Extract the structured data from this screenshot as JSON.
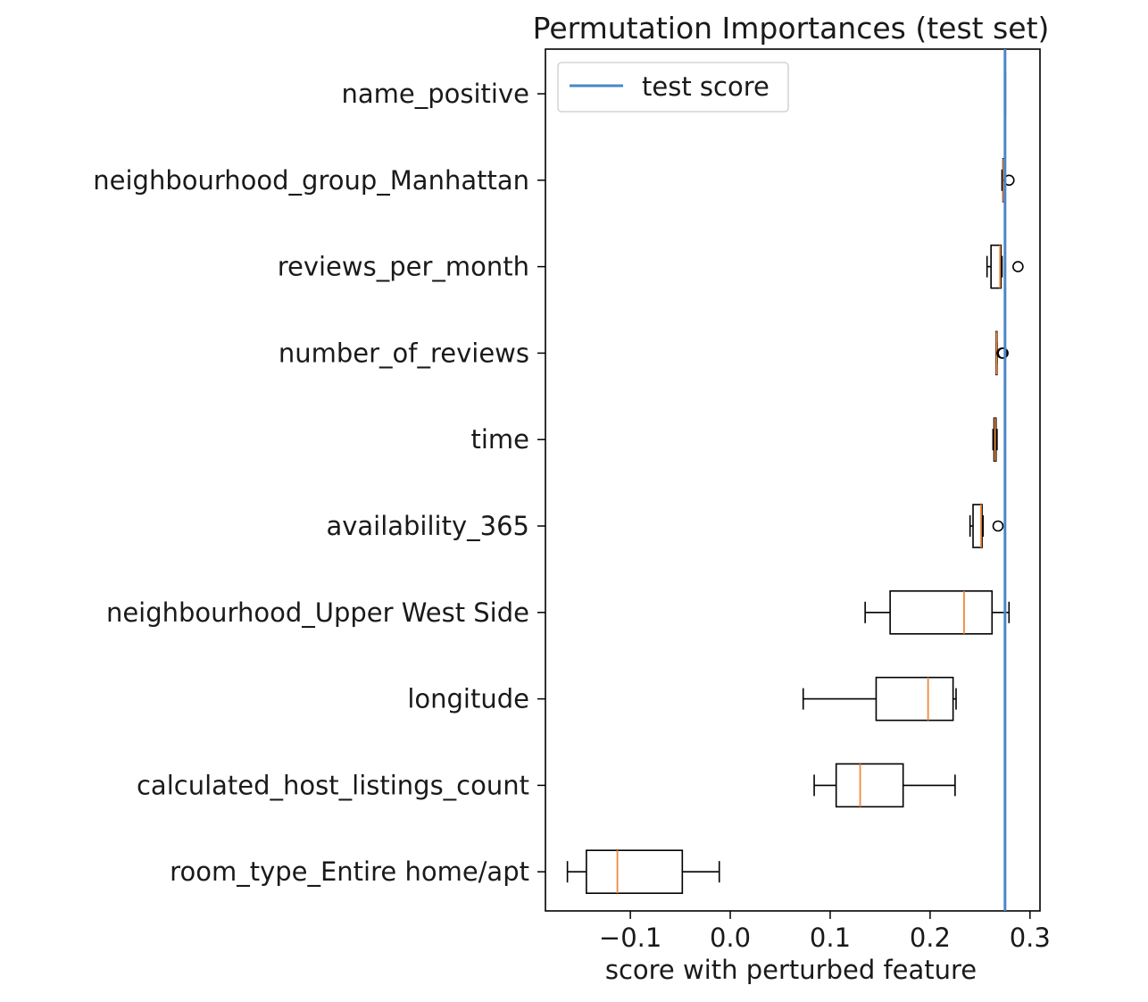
{
  "chart_data": {
    "type": "boxplot",
    "title": "Permutation Importances (test set)",
    "xlabel": "score with perturbed feature",
    "ylabel": "",
    "xlim": [
      -0.185,
      0.31
    ],
    "xticks": [
      -0.1,
      0.0,
      0.1,
      0.2,
      0.3
    ],
    "xtick_labels": [
      "−0.1",
      "0.0",
      "0.1",
      "0.2",
      "0.3"
    ],
    "grid": false,
    "legend": {
      "placement": "upper left",
      "entries": [
        "test score"
      ]
    },
    "reference_line": {
      "name": "test score",
      "value": 0.275,
      "color": "#4a86c8"
    },
    "box_color": "#000000",
    "median_color": "#f08a3c",
    "features": [
      {
        "name": "name_positive",
        "whislo": 0.275,
        "q1": 0.275,
        "med": 0.275,
        "q3": 0.275,
        "whishi": 0.275,
        "fliers": []
      },
      {
        "name": "neighbourhood_group_Manhattan",
        "whislo": 0.272,
        "q1": 0.273,
        "med": 0.2735,
        "q3": 0.274,
        "whishi": 0.275,
        "fliers": [
          0.279
        ]
      },
      {
        "name": "reviews_per_month",
        "whislo": 0.257,
        "q1": 0.261,
        "med": 0.27,
        "q3": 0.271,
        "whishi": 0.272,
        "fliers": [
          0.288
        ]
      },
      {
        "name": "number_of_reviews",
        "whislo": 0.266,
        "q1": 0.266,
        "med": 0.2665,
        "q3": 0.267,
        "whishi": 0.267,
        "fliers": [
          0.272,
          0.273
        ]
      },
      {
        "name": "time",
        "whislo": 0.263,
        "q1": 0.264,
        "med": 0.265,
        "q3": 0.266,
        "whishi": 0.267,
        "fliers": []
      },
      {
        "name": "availability_365",
        "whislo": 0.24,
        "q1": 0.243,
        "med": 0.251,
        "q3": 0.252,
        "whishi": 0.253,
        "fliers": [
          0.268
        ]
      },
      {
        "name": "neighbourhood_Upper West Side",
        "whislo": 0.135,
        "q1": 0.16,
        "med": 0.234,
        "q3": 0.262,
        "whishi": 0.279,
        "fliers": []
      },
      {
        "name": "longitude",
        "whislo": 0.073,
        "q1": 0.146,
        "med": 0.198,
        "q3": 0.223,
        "whishi": 0.226,
        "fliers": []
      },
      {
        "name": "calculated_host_listings_count",
        "whislo": 0.084,
        "q1": 0.106,
        "med": 0.13,
        "q3": 0.173,
        "whishi": 0.225,
        "fliers": []
      },
      {
        "name": "room_type_Entire home/apt",
        "whislo": -0.163,
        "q1": -0.144,
        "med": -0.113,
        "q3": -0.048,
        "whishi": -0.011,
        "fliers": []
      }
    ]
  }
}
